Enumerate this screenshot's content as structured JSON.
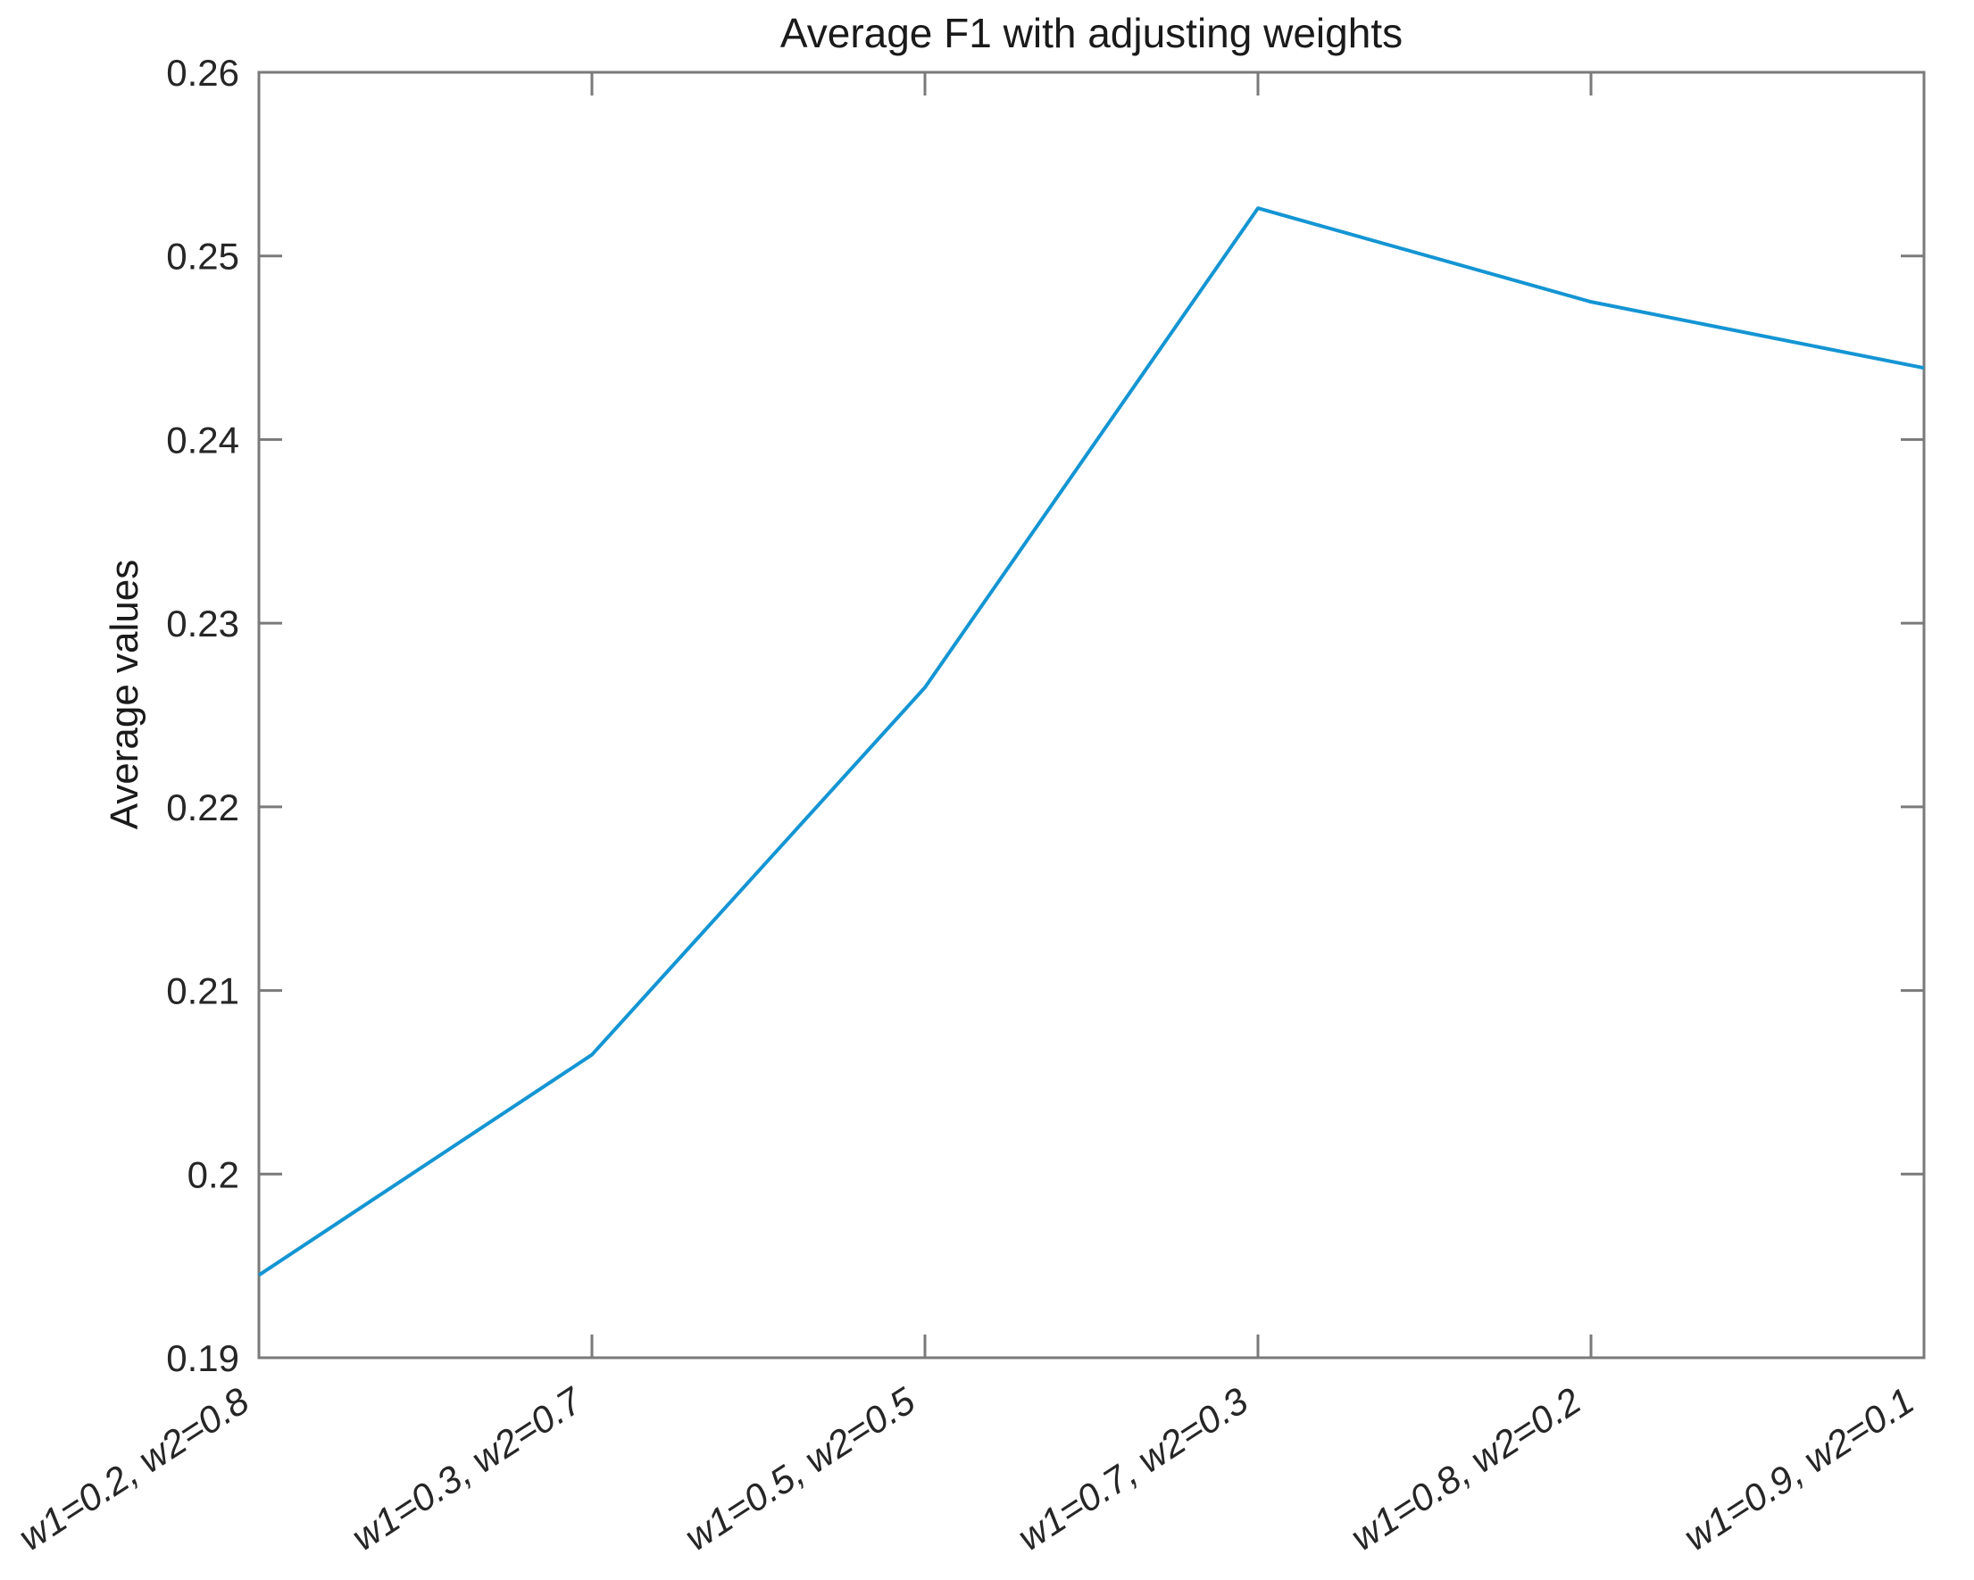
{
  "chart_data": {
    "type": "line",
    "title": "Average F1 with adjusting weights",
    "xlabel": "",
    "ylabel": "Average values",
    "categories": [
      "w1=0.2, w2=0.8",
      "w1=0.3, w2=0.7",
      "w1=0.5, w2=0.5",
      "w1=0.7, w2=0.3",
      "w1=0.8, w2=0.2",
      "w1=0.9, w2=0.1"
    ],
    "series": [
      {
        "name": "Average F1",
        "values": [
          0.1945,
          0.2065,
          0.2265,
          0.2526,
          0.2475,
          0.2439
        ]
      }
    ],
    "ylim": [
      0.19,
      0.26
    ],
    "yticks": [
      0.19,
      0.2,
      0.21,
      0.22,
      0.23,
      0.24,
      0.25,
      0.26
    ],
    "ytick_labels": [
      "0.19",
      "0.2",
      "0.21",
      "0.22",
      "0.23",
      "0.24",
      "0.25",
      "0.26"
    ],
    "grid": false,
    "legend_position": "none",
    "box": true,
    "x_tick_rotation_deg": 33,
    "colors": {
      "line": "#1495d3",
      "axis": "#7a7a7a",
      "text": "#262626",
      "background": "#ffffff"
    }
  }
}
